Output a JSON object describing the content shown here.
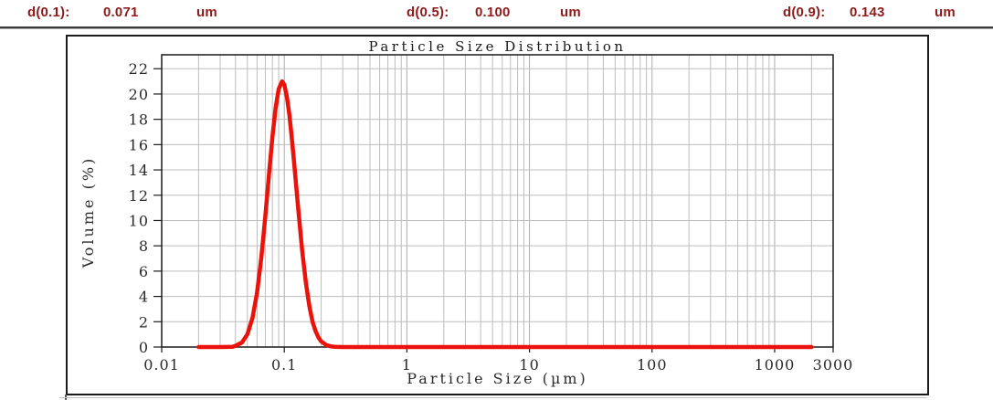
{
  "header": {
    "items": [
      {
        "label": "d(0.1):",
        "value": "0.071",
        "unit": "um"
      },
      {
        "label": "d(0.5):",
        "value": "0.100",
        "unit": "um"
      },
      {
        "label": "d(0.9):",
        "value": "0.143",
        "unit": "um"
      }
    ]
  },
  "colors": {
    "header_text": "#8e1b1b",
    "curve_red": "#ea120b",
    "grid_minor": "#bdbdbd",
    "grid_major": "#ababab",
    "axis": "#1b1b1b"
  },
  "chart_data": {
    "type": "line",
    "title": "Particle Size Distribution",
    "xlabel": "Particle Size (µm)",
    "ylabel": "Volume (%)",
    "x_scale": "log",
    "xlim": [
      0.01,
      3000
    ],
    "ylim": [
      0,
      23.1
    ],
    "x_ticks": [
      0.01,
      0.1,
      1,
      10,
      100,
      1000,
      3000
    ],
    "x_tick_labels": [
      "0.01",
      "0.1",
      "1",
      "10",
      "100",
      "1000",
      "3000"
    ],
    "y_ticks": [
      0,
      2,
      4,
      6,
      8,
      10,
      12,
      14,
      16,
      18,
      20,
      22
    ],
    "grid": true,
    "legend": "none",
    "stats": {
      "d10_um": 0.071,
      "d50_um": 0.1,
      "d90_um": 0.143,
      "peak_volume_pct": 21,
      "mode_um": 0.096
    },
    "series": [
      {
        "name": "volume-distribution",
        "color": "#ea120b",
        "points": [
          [
            0.02,
            0
          ],
          [
            0.03,
            0
          ],
          [
            0.038,
            0.02
          ],
          [
            0.04,
            0.1
          ],
          [
            0.045,
            0.35
          ],
          [
            0.05,
            1.0
          ],
          [
            0.055,
            2.3
          ],
          [
            0.06,
            4.3
          ],
          [
            0.065,
            7.1
          ],
          [
            0.07,
            10.3
          ],
          [
            0.075,
            13.6
          ],
          [
            0.08,
            16.6
          ],
          [
            0.085,
            18.9
          ],
          [
            0.09,
            20.4
          ],
          [
            0.096,
            21.0
          ],
          [
            0.1,
            20.75
          ],
          [
            0.105,
            19.8
          ],
          [
            0.11,
            18.4
          ],
          [
            0.115,
            16.6
          ],
          [
            0.12,
            14.7
          ],
          [
            0.13,
            10.9
          ],
          [
            0.14,
            7.6
          ],
          [
            0.15,
            5.1
          ],
          [
            0.16,
            3.25
          ],
          [
            0.17,
            2.0
          ],
          [
            0.18,
            1.25
          ],
          [
            0.19,
            0.76
          ],
          [
            0.2,
            0.45
          ],
          [
            0.22,
            0.16
          ],
          [
            0.24,
            0.05
          ],
          [
            0.26,
            0.02
          ],
          [
            0.3,
            0
          ],
          [
            0.5,
            0
          ],
          [
            1,
            0
          ],
          [
            3,
            0
          ],
          [
            10,
            0
          ],
          [
            30,
            0
          ],
          [
            100,
            0
          ],
          [
            300,
            0
          ],
          [
            1000,
            0
          ],
          [
            2000,
            0
          ]
        ]
      }
    ]
  }
}
